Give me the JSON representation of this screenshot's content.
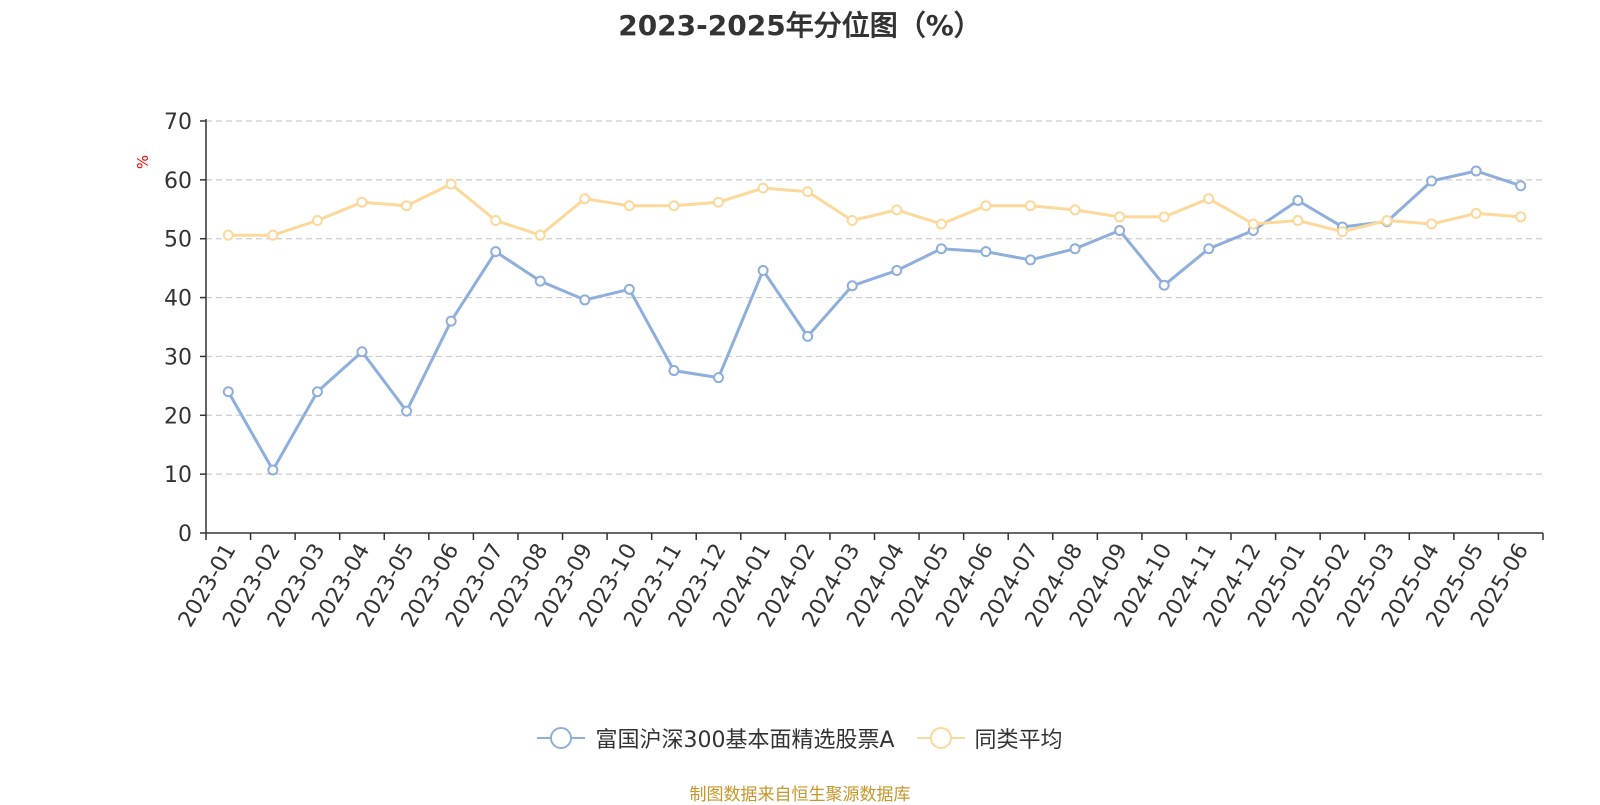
{
  "chart_data": {
    "type": "line",
    "title": "2023-2025年分位图（%）",
    "ylabel": "%",
    "xlabel": "",
    "ylim": [
      0,
      70
    ],
    "yticks": [
      0,
      10,
      20,
      30,
      40,
      50,
      60,
      70
    ],
    "grid": true,
    "legend_position": "bottom",
    "categories": [
      "2023-01",
      "2023-02",
      "2023-03",
      "2023-04",
      "2023-05",
      "2023-06",
      "2023-07",
      "2023-08",
      "2023-09",
      "2023-10",
      "2023-11",
      "2023-12",
      "2024-01",
      "2024-02",
      "2024-03",
      "2024-04",
      "2024-05",
      "2024-06",
      "2024-07",
      "2024-08",
      "2024-09",
      "2024-10",
      "2024-11",
      "2024-12",
      "2025-01",
      "2025-02",
      "2025-03",
      "2025-04",
      "2025-05",
      "2025-06"
    ],
    "series": [
      {
        "name": "富国沪深300基本面精选股票A",
        "color": "#8eaedb",
        "values": [
          24,
          10.7,
          24,
          30.8,
          20.7,
          36,
          47.8,
          42.8,
          39.6,
          41.4,
          27.6,
          26.4,
          44.6,
          33.4,
          42,
          44.6,
          48.3,
          47.8,
          46.4,
          48.3,
          51.4,
          42.1,
          48.3,
          51.4,
          56.5,
          52,
          52.9,
          59.8,
          61.5,
          59
        ]
      },
      {
        "name": "同类平均",
        "color": "#fcd89a",
        "values": [
          50.6,
          50.6,
          53.1,
          56.2,
          55.6,
          59.3,
          53.1,
          50.6,
          56.8,
          55.6,
          55.6,
          56.2,
          58.6,
          58,
          53.1,
          54.9,
          52.5,
          55.6,
          55.6,
          54.9,
          53.7,
          53.7,
          56.8,
          52.5,
          53.1,
          51.2,
          53.1,
          52.5,
          54.3,
          53.7
        ]
      }
    ]
  },
  "source": "制图数据来自恒生聚源数据库"
}
